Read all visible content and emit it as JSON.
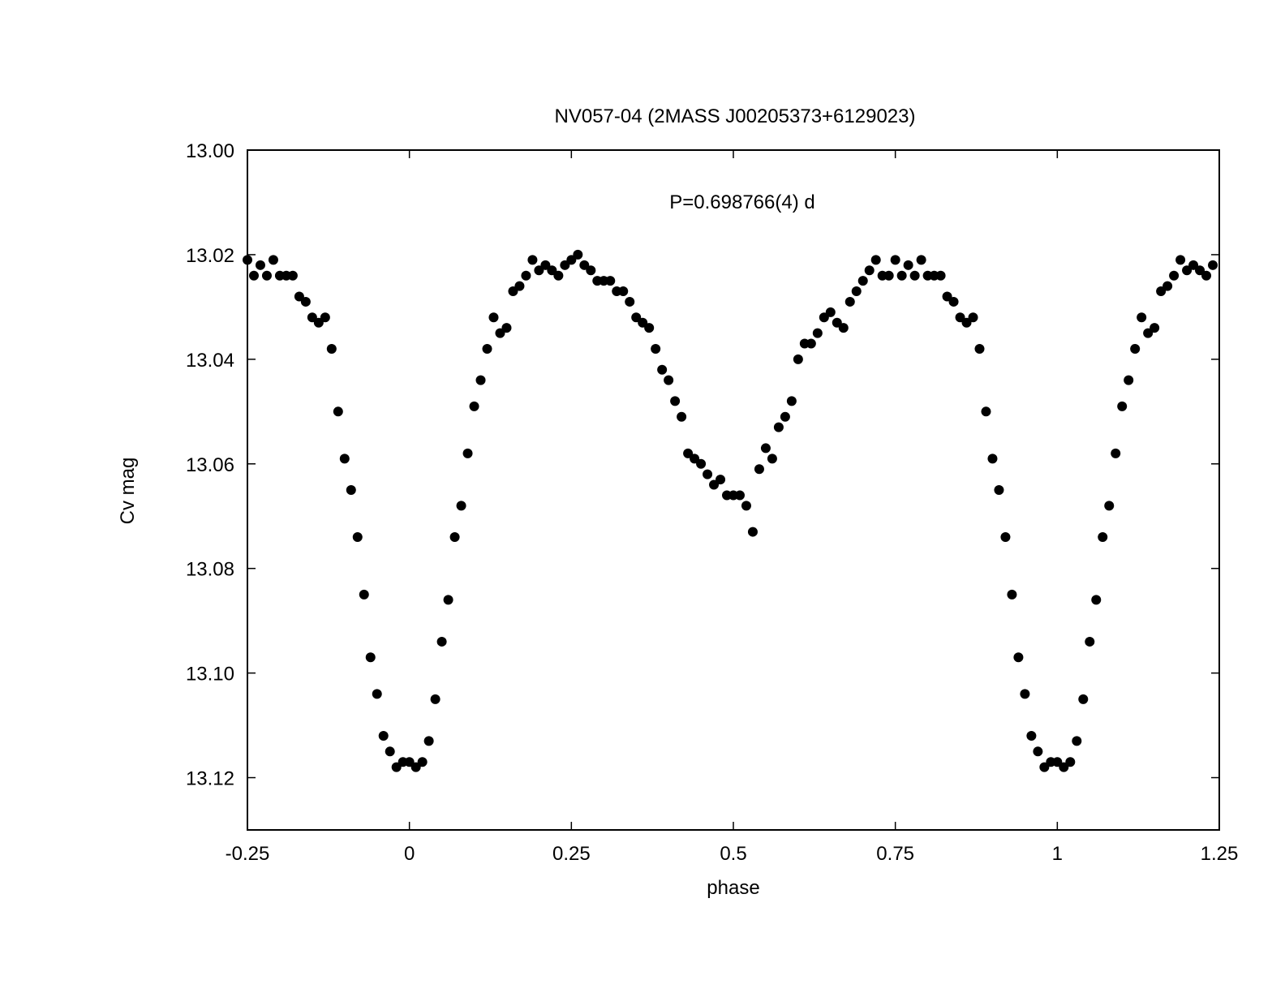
{
  "chart_data": {
    "type": "scatter",
    "title": "NV057-04 (2MASS J00205373+6129023)",
    "annotation": "P=0.698766(4) d",
    "xlabel": "phase",
    "ylabel": "Cv mag",
    "xlim": [
      -0.25,
      1.25
    ],
    "ylim": [
      13.13,
      13.0
    ],
    "y_inverted": true,
    "grid": false,
    "legend": "none",
    "marker_color": "#000000",
    "x_ticks": [
      {
        "value": -0.25,
        "label": "-0.25"
      },
      {
        "value": 0,
        "label": "0"
      },
      {
        "value": 0.25,
        "label": "0.25"
      },
      {
        "value": 0.5,
        "label": "0.5"
      },
      {
        "value": 0.75,
        "label": "0.75"
      },
      {
        "value": 1,
        "label": "1"
      },
      {
        "value": 1.25,
        "label": "1.25"
      }
    ],
    "y_ticks": [
      {
        "value": 13.0,
        "label": "13.00"
      },
      {
        "value": 13.02,
        "label": "13.02"
      },
      {
        "value": 13.04,
        "label": "13.04"
      },
      {
        "value": 13.06,
        "label": "13.06"
      },
      {
        "value": 13.08,
        "label": "13.08"
      },
      {
        "value": 13.1,
        "label": "13.10"
      },
      {
        "value": 13.12,
        "label": "13.12"
      }
    ],
    "points": [
      [
        -0.25,
        13.021
      ],
      [
        -0.24,
        13.024
      ],
      [
        -0.23,
        13.022
      ],
      [
        -0.22,
        13.024
      ],
      [
        -0.21,
        13.021
      ],
      [
        -0.2,
        13.024
      ],
      [
        -0.19,
        13.024
      ],
      [
        -0.18,
        13.024
      ],
      [
        -0.17,
        13.028
      ],
      [
        -0.16,
        13.029
      ],
      [
        -0.15,
        13.032
      ],
      [
        -0.14,
        13.033
      ],
      [
        -0.13,
        13.032
      ],
      [
        -0.12,
        13.038
      ],
      [
        -0.11,
        13.05
      ],
      [
        -0.1,
        13.059
      ],
      [
        -0.09,
        13.065
      ],
      [
        -0.08,
        13.074
      ],
      [
        -0.07,
        13.085
      ],
      [
        -0.06,
        13.097
      ],
      [
        -0.05,
        13.104
      ],
      [
        -0.04,
        13.112
      ],
      [
        -0.03,
        13.115
      ],
      [
        -0.02,
        13.118
      ],
      [
        -0.01,
        13.117
      ],
      [
        0.0,
        13.117
      ],
      [
        0.01,
        13.118
      ],
      [
        0.02,
        13.117
      ],
      [
        0.03,
        13.113
      ],
      [
        0.04,
        13.105
      ],
      [
        0.05,
        13.094
      ],
      [
        0.06,
        13.086
      ],
      [
        0.07,
        13.074
      ],
      [
        0.08,
        13.068
      ],
      [
        0.09,
        13.058
      ],
      [
        0.1,
        13.049
      ],
      [
        0.11,
        13.044
      ],
      [
        0.12,
        13.038
      ],
      [
        0.13,
        13.032
      ],
      [
        0.14,
        13.035
      ],
      [
        0.15,
        13.034
      ],
      [
        0.16,
        13.027
      ],
      [
        0.17,
        13.026
      ],
      [
        0.18,
        13.024
      ],
      [
        0.19,
        13.021
      ],
      [
        0.2,
        13.023
      ],
      [
        0.21,
        13.022
      ],
      [
        0.22,
        13.023
      ],
      [
        0.23,
        13.024
      ],
      [
        0.24,
        13.022
      ],
      [
        0.25,
        13.021
      ],
      [
        0.26,
        13.02
      ],
      [
        0.27,
        13.022
      ],
      [
        0.28,
        13.023
      ],
      [
        0.29,
        13.025
      ],
      [
        0.3,
        13.025
      ],
      [
        0.31,
        13.025
      ],
      [
        0.32,
        13.027
      ],
      [
        0.33,
        13.027
      ],
      [
        0.34,
        13.029
      ],
      [
        0.35,
        13.032
      ],
      [
        0.36,
        13.033
      ],
      [
        0.37,
        13.034
      ],
      [
        0.38,
        13.038
      ],
      [
        0.39,
        13.042
      ],
      [
        0.4,
        13.044
      ],
      [
        0.41,
        13.048
      ],
      [
        0.42,
        13.051
      ],
      [
        0.43,
        13.058
      ],
      [
        0.44,
        13.059
      ],
      [
        0.45,
        13.06
      ],
      [
        0.46,
        13.062
      ],
      [
        0.47,
        13.064
      ],
      [
        0.48,
        13.063
      ],
      [
        0.49,
        13.066
      ],
      [
        0.5,
        13.066
      ],
      [
        0.51,
        13.066
      ],
      [
        0.52,
        13.068
      ],
      [
        0.53,
        13.073
      ],
      [
        0.54,
        13.061
      ],
      [
        0.55,
        13.057
      ],
      [
        0.56,
        13.059
      ],
      [
        0.57,
        13.053
      ],
      [
        0.58,
        13.051
      ],
      [
        0.59,
        13.048
      ],
      [
        0.6,
        13.04
      ],
      [
        0.61,
        13.037
      ],
      [
        0.62,
        13.037
      ],
      [
        0.63,
        13.035
      ],
      [
        0.64,
        13.032
      ],
      [
        0.65,
        13.031
      ],
      [
        0.66,
        13.033
      ],
      [
        0.67,
        13.034
      ],
      [
        0.68,
        13.029
      ],
      [
        0.69,
        13.027
      ],
      [
        0.7,
        13.025
      ],
      [
        0.71,
        13.023
      ],
      [
        0.72,
        13.021
      ],
      [
        0.73,
        13.024
      ],
      [
        0.74,
        13.024
      ],
      [
        0.75,
        13.021
      ],
      [
        0.76,
        13.024
      ],
      [
        0.77,
        13.022
      ],
      [
        0.78,
        13.024
      ],
      [
        0.79,
        13.021
      ],
      [
        0.8,
        13.024
      ],
      [
        0.81,
        13.024
      ],
      [
        0.82,
        13.024
      ],
      [
        0.83,
        13.028
      ],
      [
        0.84,
        13.029
      ],
      [
        0.85,
        13.032
      ],
      [
        0.86,
        13.033
      ],
      [
        0.87,
        13.032
      ],
      [
        0.88,
        13.038
      ],
      [
        0.89,
        13.05
      ],
      [
        0.9,
        13.059
      ],
      [
        0.91,
        13.065
      ],
      [
        0.92,
        13.074
      ],
      [
        0.93,
        13.085
      ],
      [
        0.94,
        13.097
      ],
      [
        0.95,
        13.104
      ],
      [
        0.96,
        13.112
      ],
      [
        0.97,
        13.115
      ],
      [
        0.98,
        13.118
      ],
      [
        0.99,
        13.117
      ],
      [
        1.0,
        13.117
      ],
      [
        1.01,
        13.118
      ],
      [
        1.02,
        13.117
      ],
      [
        1.03,
        13.113
      ],
      [
        1.04,
        13.105
      ],
      [
        1.05,
        13.094
      ],
      [
        1.06,
        13.086
      ],
      [
        1.07,
        13.074
      ],
      [
        1.08,
        13.068
      ],
      [
        1.09,
        13.058
      ],
      [
        1.1,
        13.049
      ],
      [
        1.11,
        13.044
      ],
      [
        1.12,
        13.038
      ],
      [
        1.13,
        13.032
      ],
      [
        1.14,
        13.035
      ],
      [
        1.15,
        13.034
      ],
      [
        1.16,
        13.027
      ],
      [
        1.17,
        13.026
      ],
      [
        1.18,
        13.024
      ],
      [
        1.19,
        13.021
      ],
      [
        1.2,
        13.023
      ],
      [
        1.21,
        13.022
      ],
      [
        1.22,
        13.023
      ],
      [
        1.23,
        13.024
      ],
      [
        1.24,
        13.022
      ]
    ]
  }
}
